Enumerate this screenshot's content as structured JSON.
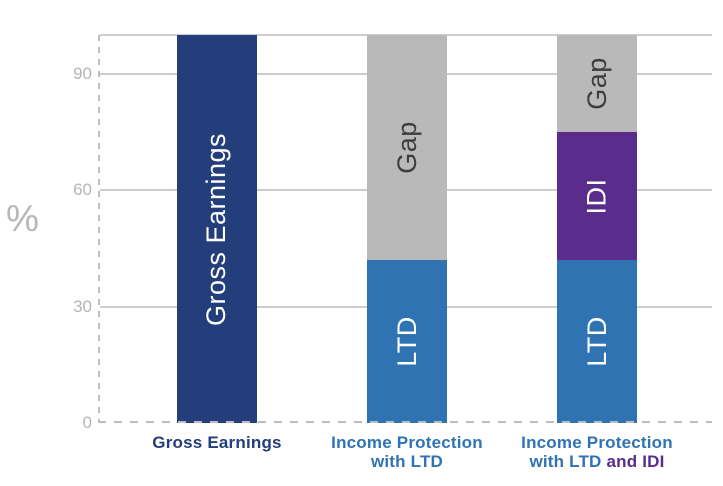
{
  "chart_data": {
    "type": "bar",
    "stacked": true,
    "title": "",
    "xlabel": "",
    "ylabel": "%",
    "ylim": [
      0,
      100
    ],
    "yticks": [
      90,
      60,
      30,
      0
    ],
    "gridline_values": [
      100,
      90,
      60,
      30
    ],
    "grid": "horizontal solid gridlines; dashed y-axis and dashed zero baseline",
    "legend": "none (segments labeled inside bars)",
    "categories": [
      "Gross Earnings",
      "Income Protection with LTD",
      "Income Protection with LTD and IDI"
    ],
    "bars": [
      {
        "category": "Gross Earnings",
        "segments": [
          {
            "label": "Gross Earnings",
            "value": 100,
            "color": "#243e7c",
            "text_color": "#ffffff"
          }
        ]
      },
      {
        "category": "Income Protection with LTD",
        "segments": [
          {
            "label": "LTD",
            "value": 42,
            "color": "#2f73b3",
            "text_color": "#ffffff"
          },
          {
            "label": "Gap",
            "value": 58,
            "color": "#b9b9b9",
            "text_color": "#3d3d3d"
          }
        ]
      },
      {
        "category": "Income Protection with LTD and IDI",
        "segments": [
          {
            "label": "LTD",
            "value": 42,
            "color": "#2f73b3",
            "text_color": "#ffffff"
          },
          {
            "label": "IDI",
            "value": 33,
            "color": "#5a2d8c",
            "text_color": "#ffffff"
          },
          {
            "label": "Gap",
            "value": 25,
            "color": "#b9b9b9",
            "text_color": "#3d3d3d"
          }
        ]
      }
    ],
    "x_labels": [
      {
        "lines": [
          [
            {
              "text": "Gross Earnings",
              "color": "#243e7c"
            }
          ]
        ]
      },
      {
        "lines": [
          [
            {
              "text": "Income Protection",
              "color": "#2f73b3"
            }
          ],
          [
            {
              "text": "with LTD",
              "color": "#2f73b3"
            }
          ]
        ]
      },
      {
        "lines": [
          [
            {
              "text": "Income Protection",
              "color": "#2f73b3"
            }
          ],
          [
            {
              "text": "with LTD ",
              "color": "#2f73b3"
            },
            {
              "text": "and IDI",
              "color": "#5a2d8c"
            }
          ]
        ]
      }
    ]
  },
  "colors": {
    "gross_earnings_navy": "#243e7c",
    "ltd_blue": "#2f73b3",
    "idi_purple": "#5a2d8c",
    "gap_gray": "#b9b9b9",
    "gap_text_dark": "#3d3d3d",
    "axis_text_gray": "#b5b5b5",
    "gridline_gray": "#cdcdcd",
    "dashed_line_gray": "#bdbdbd"
  }
}
